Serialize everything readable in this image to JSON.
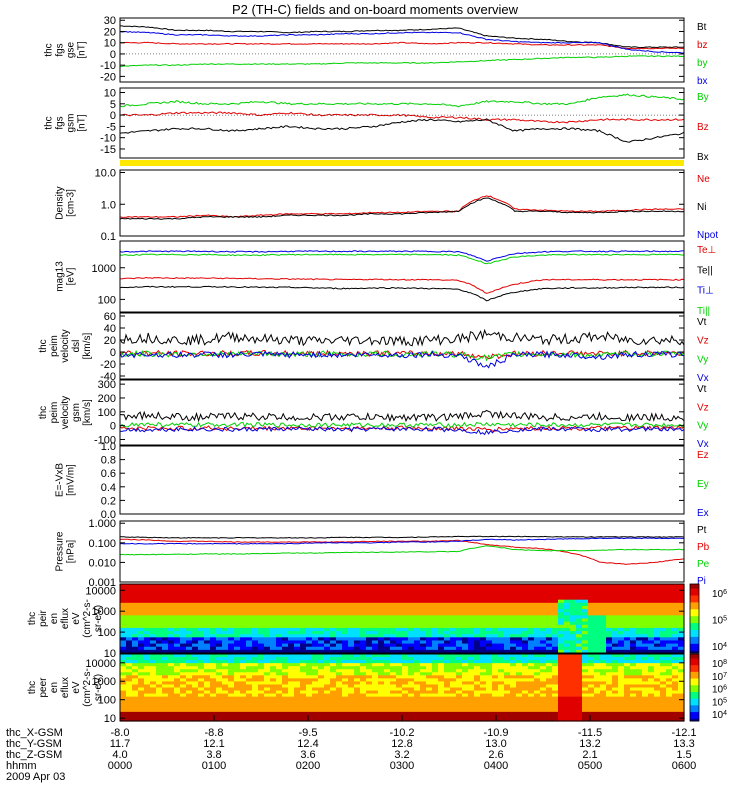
{
  "title": "P2 (TH-C) fields and on-board moments overview",
  "date": "2009 Apr 03",
  "colors": {
    "black": "#000000",
    "red": "#e00000",
    "green": "#00d000",
    "blue": "#0000e0",
    "yellow": "#ffe800"
  },
  "chart_data": [
    {
      "id": "fgs_gse",
      "type": "line",
      "ylabel": [
        "thc",
        "fgs",
        "gse",
        "[nT]"
      ],
      "ylim": [
        -25,
        32
      ],
      "ticks": [
        30,
        20,
        10,
        0,
        -10,
        -20
      ],
      "series": [
        {
          "name": "Bt",
          "color": "#000000",
          "values": [
            25,
            24,
            21,
            21,
            20,
            20,
            19,
            20,
            20,
            21,
            21,
            22,
            23,
            16,
            14,
            13,
            11,
            10,
            6,
            6,
            6
          ]
        },
        {
          "name": "bz",
          "color": "#e00000",
          "values": [
            10,
            10,
            9,
            9,
            9,
            9,
            9,
            9,
            9,
            9,
            10,
            9,
            10,
            10,
            9,
            8,
            8,
            8,
            5,
            5,
            5
          ]
        },
        {
          "name": "by",
          "color": "#00d000",
          "values": [
            -11,
            -10,
            -10,
            -9,
            -9,
            -9,
            -9,
            -9,
            -8,
            -8,
            -8,
            -8,
            -7,
            -6,
            -5,
            -4,
            -3,
            -3,
            -2,
            -2,
            -2
          ]
        },
        {
          "name": "bx",
          "color": "#0000e0",
          "values": [
            20,
            19,
            17,
            17,
            16,
            16,
            17,
            17,
            18,
            18,
            19,
            19,
            19,
            13,
            11,
            10,
            10,
            10,
            4,
            2,
            1
          ]
        }
      ]
    },
    {
      "id": "fgs_gsm",
      "type": "line",
      "ylabel": [
        "thc",
        "fgs",
        "gsm",
        "[nT]"
      ],
      "ylim": [
        -19,
        12
      ],
      "ticks": [
        10,
        5,
        0,
        -5,
        -10,
        -15
      ],
      "series": [
        {
          "name": "By",
          "color": "#00d000",
          "values": [
            4,
            5,
            6,
            5,
            5,
            6,
            5,
            5,
            5,
            5,
            5,
            5,
            4,
            6,
            6,
            5,
            5,
            8,
            9,
            8,
            7
          ]
        },
        {
          "name": "Bz",
          "color": "#e00000",
          "values": [
            0,
            0,
            1,
            1,
            1,
            0,
            1,
            0,
            0,
            0,
            0,
            -1,
            -1,
            -2,
            -2,
            -3,
            -3,
            -2,
            -2,
            -2,
            -2
          ]
        },
        {
          "name": "Bx",
          "color": "#000000",
          "values": [
            -8,
            -7,
            -6,
            -6,
            -7,
            -6,
            -5,
            -6,
            -6,
            -5,
            -3,
            -2,
            -3,
            -2,
            -7,
            -6,
            -6,
            -7,
            -12,
            -10,
            -8
          ]
        }
      ]
    },
    {
      "id": "density",
      "type": "line",
      "scale": "log",
      "ylabel": [
        "Density",
        "[cm-3]"
      ],
      "ylim": [
        0.1,
        12
      ],
      "ticks": [
        10.0,
        1.0,
        0.1
      ],
      "tick_labels": [
        "10.0",
        "1.0",
        "0.1"
      ],
      "series": [
        {
          "name": "Ne",
          "color": "#e00000",
          "values": [
            0.4,
            0.4,
            0.4,
            0.45,
            0.4,
            0.45,
            0.5,
            0.5,
            0.5,
            0.55,
            0.55,
            0.6,
            0.6,
            1.9,
            0.7,
            0.65,
            0.6,
            0.6,
            0.65,
            0.7,
            0.7
          ]
        },
        {
          "name": "Ni",
          "color": "#000000",
          "values": [
            0.35,
            0.35,
            0.35,
            0.4,
            0.4,
            0.4,
            0.45,
            0.45,
            0.45,
            0.5,
            0.5,
            0.55,
            0.6,
            1.6,
            0.6,
            0.6,
            0.55,
            0.55,
            0.6,
            0.6,
            0.6
          ]
        },
        {
          "name": "Npot",
          "color": "#0000e0",
          "values": []
        }
      ]
    },
    {
      "id": "temp",
      "type": "line",
      "scale": "log",
      "ylabel": [
        "mag13",
        "[eV]"
      ],
      "ylim": [
        40,
        7000
      ],
      "ticks": [
        1000,
        100
      ],
      "tick_labels": [
        "1000",
        "100"
      ],
      "series": [
        {
          "name": "Te⊥",
          "color": "#e00000",
          "values": [
            450,
            480,
            470,
            470,
            460,
            450,
            440,
            430,
            420,
            430,
            420,
            420,
            400,
            150,
            300,
            420,
            420,
            420,
            420,
            420,
            420
          ]
        },
        {
          "name": "Te||",
          "color": "#000000",
          "values": [
            240,
            250,
            250,
            250,
            250,
            240,
            240,
            230,
            220,
            230,
            230,
            220,
            210,
            90,
            170,
            220,
            230,
            230,
            240,
            240,
            240
          ]
        },
        {
          "name": "Ti⊥",
          "color": "#0000e0",
          "values": [
            3200,
            3300,
            3300,
            3300,
            3200,
            3200,
            3300,
            3300,
            3300,
            3300,
            3300,
            3300,
            3200,
            1600,
            2800,
            3200,
            3300,
            3300,
            3300,
            3300,
            3300
          ]
        },
        {
          "name": "Ti||",
          "color": "#00d000",
          "values": [
            2500,
            2600,
            2600,
            2600,
            2500,
            2500,
            2600,
            2600,
            2600,
            2600,
            2600,
            2600,
            2500,
            1300,
            2200,
            2500,
            2600,
            2600,
            2600,
            2600,
            2600
          ]
        }
      ]
    },
    {
      "id": "vel_dsl",
      "type": "line",
      "noisy": true,
      "ylabel": [
        "thc",
        "peim",
        "velocity",
        "dsl",
        "[km/s]"
      ],
      "ylim": [
        -45,
        65
      ],
      "ticks": [
        60,
        40,
        20,
        0,
        -20,
        -40
      ],
      "series": [
        {
          "name": "Vt",
          "color": "#000000",
          "values": [
            22,
            24,
            20,
            20,
            26,
            22,
            20,
            18,
            20,
            20,
            18,
            20,
            22,
            30,
            24,
            20,
            22,
            26,
            20,
            20,
            20
          ]
        },
        {
          "name": "Vz",
          "color": "#e00000",
          "values": [
            -2,
            -2,
            -3,
            -2,
            -3,
            -2,
            -2,
            -3,
            -2,
            -2,
            -3,
            -2,
            -3,
            -8,
            -3,
            -2,
            -2,
            -3,
            -2,
            -2,
            -2
          ]
        },
        {
          "name": "Vy",
          "color": "#00d000",
          "values": [
            -4,
            -3,
            -4,
            -3,
            -4,
            -3,
            -4,
            -3,
            -4,
            -3,
            -4,
            -3,
            -4,
            -10,
            -4,
            -3,
            -4,
            -6,
            -3,
            -3,
            -3
          ]
        },
        {
          "name": "Vx",
          "color": "#0000e0",
          "values": [
            -5,
            -4,
            -5,
            -4,
            -5,
            -4,
            -5,
            -4,
            -5,
            -4,
            -5,
            -4,
            -5,
            -25,
            -5,
            -4,
            -5,
            -8,
            -4,
            -4,
            -4
          ]
        }
      ]
    },
    {
      "id": "vel_gsm",
      "type": "line",
      "noisy": true,
      "ylabel": [
        "thc",
        "peim",
        "velocity",
        "gsm",
        "[km/s]"
      ],
      "ylim": [
        -140,
        330
      ],
      "ticks": [
        300,
        200,
        100,
        0,
        -100
      ],
      "series": [
        {
          "name": "Vt",
          "color": "#000000",
          "values": [
            70,
            75,
            65,
            60,
            70,
            65,
            60,
            60,
            65,
            60,
            60,
            60,
            65,
            90,
            70,
            60,
            60,
            65,
            60,
            60,
            60
          ]
        },
        {
          "name": "Vz",
          "color": "#e00000",
          "values": [
            -20,
            -20,
            -20,
            -18,
            -20,
            -20,
            -18,
            -18,
            -20,
            -20,
            -18,
            -18,
            -20,
            -30,
            -20,
            -18,
            -18,
            -20,
            -18,
            -18,
            -18
          ]
        },
        {
          "name": "Vy",
          "color": "#00d000",
          "values": [
            5,
            10,
            5,
            5,
            10,
            5,
            5,
            5,
            5,
            5,
            5,
            5,
            5,
            10,
            5,
            5,
            5,
            5,
            5,
            5,
            5
          ]
        },
        {
          "name": "Vx",
          "color": "#0000e0",
          "values": [
            -30,
            -30,
            -25,
            -25,
            -30,
            -25,
            -25,
            -25,
            -30,
            -25,
            -25,
            -25,
            -30,
            -50,
            -30,
            -25,
            -25,
            -30,
            -25,
            -25,
            -25
          ]
        }
      ]
    },
    {
      "id": "efield",
      "type": "line",
      "ylabel": [
        "E=-VxB",
        "[mV/m]"
      ],
      "ylim": [
        0,
        1
      ],
      "ticks": [
        1.0,
        0.8,
        0.6,
        0.4,
        0.2,
        0.0
      ],
      "tick_labels": [
        "1.0",
        "0.8",
        "0.6",
        "0.4",
        "0.2",
        "0.0"
      ],
      "series": [
        {
          "name": "Ez",
          "color": "#e00000",
          "values": []
        },
        {
          "name": "Ey",
          "color": "#00d000",
          "values": []
        },
        {
          "name": "Ex",
          "color": "#0000e0",
          "values": []
        }
      ]
    },
    {
      "id": "pressure",
      "type": "line",
      "scale": "log",
      "ylabel": [
        "Pressure",
        "[nPa]"
      ],
      "ylim": [
        0.001,
        1.3
      ],
      "ticks": [
        1.0,
        0.1,
        0.01,
        0.001
      ],
      "tick_labels": [
        "1.000",
        "0.100",
        "0.010",
        "0.001"
      ],
      "series": [
        {
          "name": "Pt",
          "color": "#000000",
          "values": [
            0.2,
            0.19,
            0.18,
            0.18,
            0.18,
            0.18,
            0.18,
            0.18,
            0.19,
            0.19,
            0.19,
            0.2,
            0.21,
            0.21,
            0.21,
            0.21,
            0.2,
            0.2,
            0.2,
            0.2,
            0.2
          ]
        },
        {
          "name": "Pb",
          "color": "#e00000",
          "values": [
            0.15,
            0.14,
            0.12,
            0.12,
            0.11,
            0.11,
            0.11,
            0.11,
            0.11,
            0.12,
            0.12,
            0.12,
            0.13,
            0.08,
            0.06,
            0.05,
            0.03,
            0.01,
            0.008,
            0.01,
            0.015
          ]
        },
        {
          "name": "Pe",
          "color": "#00d000",
          "values": [
            0.025,
            0.025,
            0.026,
            0.027,
            0.027,
            0.028,
            0.03,
            0.03,
            0.032,
            0.033,
            0.034,
            0.035,
            0.036,
            0.07,
            0.045,
            0.04,
            0.04,
            0.042,
            0.045,
            0.045,
            0.045
          ]
        },
        {
          "name": "Pi",
          "color": "#0000e0",
          "values": [
            0.09,
            0.09,
            0.09,
            0.09,
            0.09,
            0.09,
            0.09,
            0.1,
            0.1,
            0.1,
            0.11,
            0.11,
            0.12,
            0.15,
            0.14,
            0.15,
            0.16,
            0.17,
            0.17,
            0.17,
            0.17
          ]
        }
      ]
    },
    {
      "id": "peir",
      "type": "heatmap",
      "ylabel": [
        "thc",
        "peir",
        "en",
        "eflux",
        "eV",
        "(cm^2-s-",
        "sr-eV)"
      ],
      "ylim": [
        10,
        20000
      ],
      "scale": "log",
      "ticks": [
        10000,
        1000,
        100,
        10
      ],
      "tick_labels": [
        "10000",
        "1000",
        "100",
        "10"
      ],
      "colorbar": {
        "ticks": [
          "10",
          "10",
          "10"
        ],
        "exps": [
          "6",
          "5",
          "4"
        ]
      }
    },
    {
      "id": "peer",
      "type": "heatmap",
      "ylabel": [
        "thc",
        "peer",
        "en",
        "eflux",
        "eV",
        "(cm^2-s-",
        "sr-eV)"
      ],
      "ylim": [
        7,
        30000
      ],
      "scale": "log",
      "ticks": [
        10000,
        1000,
        100,
        10
      ],
      "tick_labels": [
        "10000",
        "1000",
        "100",
        "10"
      ],
      "colorbar": {
        "ticks": [
          "10",
          "10",
          "10",
          "10",
          "10"
        ],
        "exps": [
          "8",
          "7",
          "6",
          "5",
          "4"
        ]
      }
    }
  ],
  "bar": {
    "label": "",
    "color": "#ffe800"
  },
  "x_axis": {
    "rows": [
      {
        "label": "thc_X-GSM",
        "values": [
          "-8.0",
          "-8.8",
          "-9.5",
          "-10.2",
          "-10.9",
          "-11.5",
          "-12.1"
        ]
      },
      {
        "label": "thc_Y-GSM",
        "values": [
          "11.7",
          "12.1",
          "12.4",
          "12.8",
          "13.0",
          "13.2",
          "13.3"
        ]
      },
      {
        "label": "thc_Z-GSM",
        "values": [
          "4.0",
          "3.8",
          "3.6",
          "3.2",
          "2.6",
          "2.1",
          "1.5"
        ]
      },
      {
        "label": "hhmm",
        "values": [
          "0000",
          "0100",
          "0200",
          "0300",
          "0400",
          "0500",
          "0600"
        ]
      }
    ]
  }
}
